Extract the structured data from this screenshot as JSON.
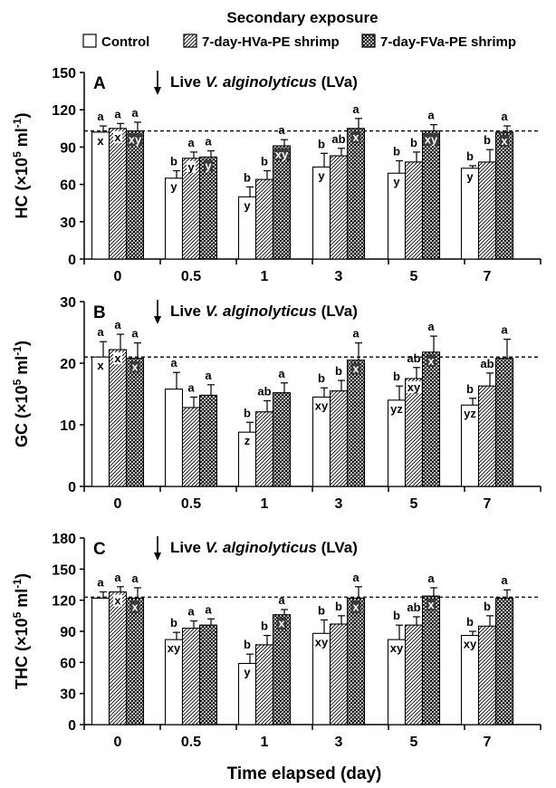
{
  "legend": {
    "title": "Secondary exposure",
    "items": [
      {
        "label": "Control",
        "pattern": "white"
      },
      {
        "label": "7-day-HVa-PE shrimp",
        "pattern": "diagonal"
      },
      {
        "label": "7-day-FVa-PE shrimp",
        "pattern": "crosshatch"
      }
    ]
  },
  "xlabel": "Time elapsed (day)",
  "annotation": {
    "prefix": "Live ",
    "species": "V. alginolyticus",
    "suffix": " (LVa)",
    "arrow": "↓"
  },
  "colors": {
    "bar_edge": "#000000",
    "control_fill": "#ffffff",
    "hatch": "#000000",
    "reference_line": "#000000"
  },
  "chart_data": [
    {
      "type": "bar",
      "panel": "A",
      "ylabel_prefix": "HC (×10",
      "ylabel_sup_exp": "5",
      "ylabel_middle": " ml",
      "ylabel_sup_unit": "-1",
      "ylabel_suffix": ")",
      "ylim": [
        0,
        150
      ],
      "yticks": [
        "0",
        "30",
        "60",
        "90",
        "120",
        "150"
      ],
      "categories": [
        "0",
        "0.5",
        "1",
        "3",
        "5",
        "7"
      ],
      "reference_line": 103,
      "series": [
        {
          "name": "Control",
          "values": [
            102,
            65,
            50,
            74,
            69,
            73
          ],
          "errors": [
            5,
            6,
            8,
            11,
            10,
            2
          ],
          "sig": [
            "a",
            "b",
            "b",
            "b",
            "b",
            "b"
          ],
          "inner": [
            "x",
            "y",
            "y",
            "y",
            "y",
            "y"
          ]
        },
        {
          "name": "7-day-HVa-PE shrimp",
          "values": [
            105,
            81,
            64,
            83,
            78,
            78
          ],
          "errors": [
            4,
            5,
            7,
            6,
            8,
            10
          ],
          "sig": [
            "a",
            "a",
            "b",
            "ab",
            "b",
            "b"
          ],
          "inner": [
            "x",
            "y",
            "",
            "",
            "",
            ""
          ]
        },
        {
          "name": "7-day-FVa-PE shrimp",
          "values": [
            103,
            82,
            91,
            105,
            103,
            102
          ],
          "errors": [
            7,
            5,
            5,
            8,
            5,
            5
          ],
          "sig": [
            "a",
            "a",
            "a",
            "a",
            "a",
            "a"
          ],
          "inner": [
            "xy",
            "y",
            "xy",
            "x",
            "xy",
            "x"
          ]
        }
      ]
    },
    {
      "type": "bar",
      "panel": "B",
      "ylabel_prefix": "GC (×10",
      "ylabel_sup_exp": "5",
      "ylabel_middle": " ml",
      "ylabel_sup_unit": "-1",
      "ylabel_suffix": ")",
      "ylim": [
        0,
        30
      ],
      "yticks": [
        "0",
        "10",
        "20",
        "30"
      ],
      "categories": [
        "0",
        "0.5",
        "1",
        "3",
        "5",
        "7"
      ],
      "reference_line": 21,
      "series": [
        {
          "name": "Control",
          "values": [
            21,
            15.8,
            8.8,
            14.5,
            14,
            13.2
          ],
          "errors": [
            2.5,
            2.7,
            1.6,
            1.5,
            2.3,
            1.1
          ],
          "sig": [
            "a",
            "a",
            "b",
            "b",
            "b",
            "b"
          ],
          "inner": [
            "x",
            "",
            "z",
            "xy",
            "yz",
            "yz"
          ]
        },
        {
          "name": "7-day-HVa-PE shrimp",
          "values": [
            22.2,
            12.8,
            12.1,
            15.5,
            17.5,
            16.3
          ],
          "errors": [
            2.5,
            1.7,
            1.8,
            1.7,
            1.8,
            2.1
          ],
          "sig": [
            "a",
            "a",
            "ab",
            "b",
            "ab",
            "ab"
          ],
          "inner": [
            "x",
            "",
            "",
            "",
            "xy",
            ""
          ]
        },
        {
          "name": "7-day-FVa-PE shrimp",
          "values": [
            20.8,
            14.8,
            15.2,
            20.5,
            21.8,
            20.8
          ],
          "errors": [
            2.5,
            1.7,
            1.6,
            2.8,
            2.6,
            3.1
          ],
          "sig": [
            "a",
            "a",
            "a",
            "a",
            "a",
            "a"
          ],
          "inner": [
            "x",
            "",
            "",
            "x",
            "x",
            ""
          ]
        }
      ]
    },
    {
      "type": "bar",
      "panel": "C",
      "ylabel_prefix": "THC (×10",
      "ylabel_sup_exp": "5",
      "ylabel_middle": " ml",
      "ylabel_sup_unit": "-1",
      "ylabel_suffix": ")",
      "ylim": [
        0,
        180
      ],
      "yticks": [
        "0",
        "30",
        "60",
        "90",
        "120",
        "150",
        "180"
      ],
      "categories": [
        "0",
        "0.5",
        "1",
        "3",
        "5",
        "7"
      ],
      "reference_line": 123,
      "series": [
        {
          "name": "Control",
          "values": [
            122,
            82,
            59,
            88,
            82,
            86
          ],
          "errors": [
            6,
            7,
            9,
            13,
            14,
            4
          ],
          "sig": [
            "a",
            "b",
            "b",
            "b",
            "b",
            "b"
          ],
          "inner": [
            "",
            "xy",
            "y",
            "xy",
            "xy",
            "xy"
          ]
        },
        {
          "name": "7-day-HVa-PE shrimp",
          "values": [
            128,
            93,
            77,
            97,
            96,
            95
          ],
          "errors": [
            5,
            7,
            9,
            8,
            8,
            10
          ],
          "sig": [
            "a",
            "a",
            "b",
            "b",
            "ab",
            "b"
          ],
          "inner": [
            "x",
            "",
            "",
            "",
            "",
            ""
          ]
        },
        {
          "name": "7-day-FVa-PE shrimp",
          "values": [
            122,
            96,
            106,
            122,
            124,
            122
          ],
          "errors": [
            10,
            6,
            5,
            11,
            8,
            8
          ],
          "sig": [
            "a",
            "a",
            "a",
            "a",
            "a",
            "a"
          ],
          "inner": [
            "x",
            "",
            "x",
            "x",
            "x",
            ""
          ]
        }
      ]
    }
  ]
}
